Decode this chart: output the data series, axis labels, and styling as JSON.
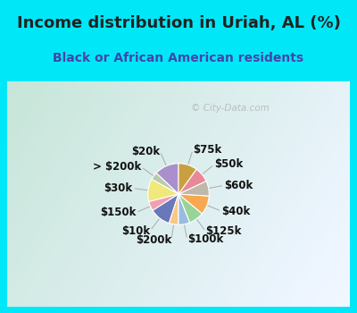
{
  "title": "Income distribution in Uriah, AL (%)",
  "subtitle": "Black or African American residents",
  "watermark": "© City-Data.com",
  "bg_cyan": "#00e8f8",
  "bg_chart_tl": "#d4efe8",
  "bg_chart_br": "#e8f8f8",
  "labels": [
    "$20k",
    "> $200k",
    "$30k",
    "$150k",
    "$10k",
    "$200k",
    "$100k",
    "$125k",
    "$40k",
    "$60k",
    "$50k",
    "$75k"
  ],
  "values": [
    13,
    4,
    12,
    5,
    11,
    5,
    6,
    8,
    10,
    8,
    8,
    10
  ],
  "colors": [
    "#a990cc",
    "#b8ccaa",
    "#f0e87a",
    "#f0a0b0",
    "#6878b8",
    "#f8c888",
    "#98bce0",
    "#98d498",
    "#f8a850",
    "#c0b8a8",
    "#e88898",
    "#c8a040"
  ],
  "title_color": "#222222",
  "subtitle_color": "#4444aa",
  "title_fontsize": 13,
  "subtitle_fontsize": 10,
  "label_fontsize": 8.5,
  "label_color": "#111111"
}
